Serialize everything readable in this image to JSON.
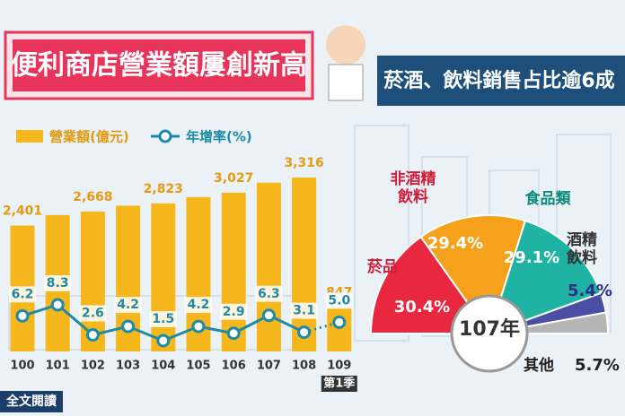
{
  "title": "便利商店營業額屢創新高",
  "subtitle": "菸酒、飲料銷售占比逾6成",
  "button": "全文閱讀",
  "chart_data": [
    {
      "type": "bar",
      "categories": [
        "100",
        "101",
        "102",
        "103",
        "104",
        "105",
        "106",
        "107",
        "108",
        "109"
      ],
      "last_category_note": "第1季",
      "series": [
        {
          "name": "營業額(億元)",
          "color": "#f5b71c",
          "values": [
            2401,
            2600,
            2668,
            2780,
            2823,
            2942,
            3027,
            3218,
            3316,
            847
          ],
          "value_labels": [
            "2,401",
            null,
            "2,668",
            null,
            "2,823",
            null,
            "3,027",
            null,
            "3,316",
            "847"
          ]
        },
        {
          "name": "年增率(%)",
          "type": "line",
          "color": "#1f8aa6",
          "values": [
            6.2,
            8.3,
            2.6,
            4.2,
            1.5,
            4.2,
            2.9,
            6.3,
            3.1,
            5.0
          ],
          "value_labels": [
            "6.2",
            "8.3",
            "2.6",
            "4.2",
            "1.5",
            "4.2",
            "2.9",
            "6.3",
            "3.1",
            "5.0"
          ]
        }
      ]
    },
    {
      "type": "pie",
      "center_label": "107年",
      "categories": [
        "菸品",
        "非酒精飲料",
        "食品類",
        "酒精飲料",
        "其他"
      ],
      "values": [
        30.4,
        29.4,
        29.1,
        5.4,
        5.7
      ],
      "value_labels": [
        "30.4%",
        "29.4%",
        "29.1%",
        "5.4%",
        "5.7%"
      ],
      "colors": [
        "#e8283f",
        "#f5a11c",
        "#1fb3a3",
        "#4a4fa3",
        "#b5b5b5"
      ]
    }
  ]
}
